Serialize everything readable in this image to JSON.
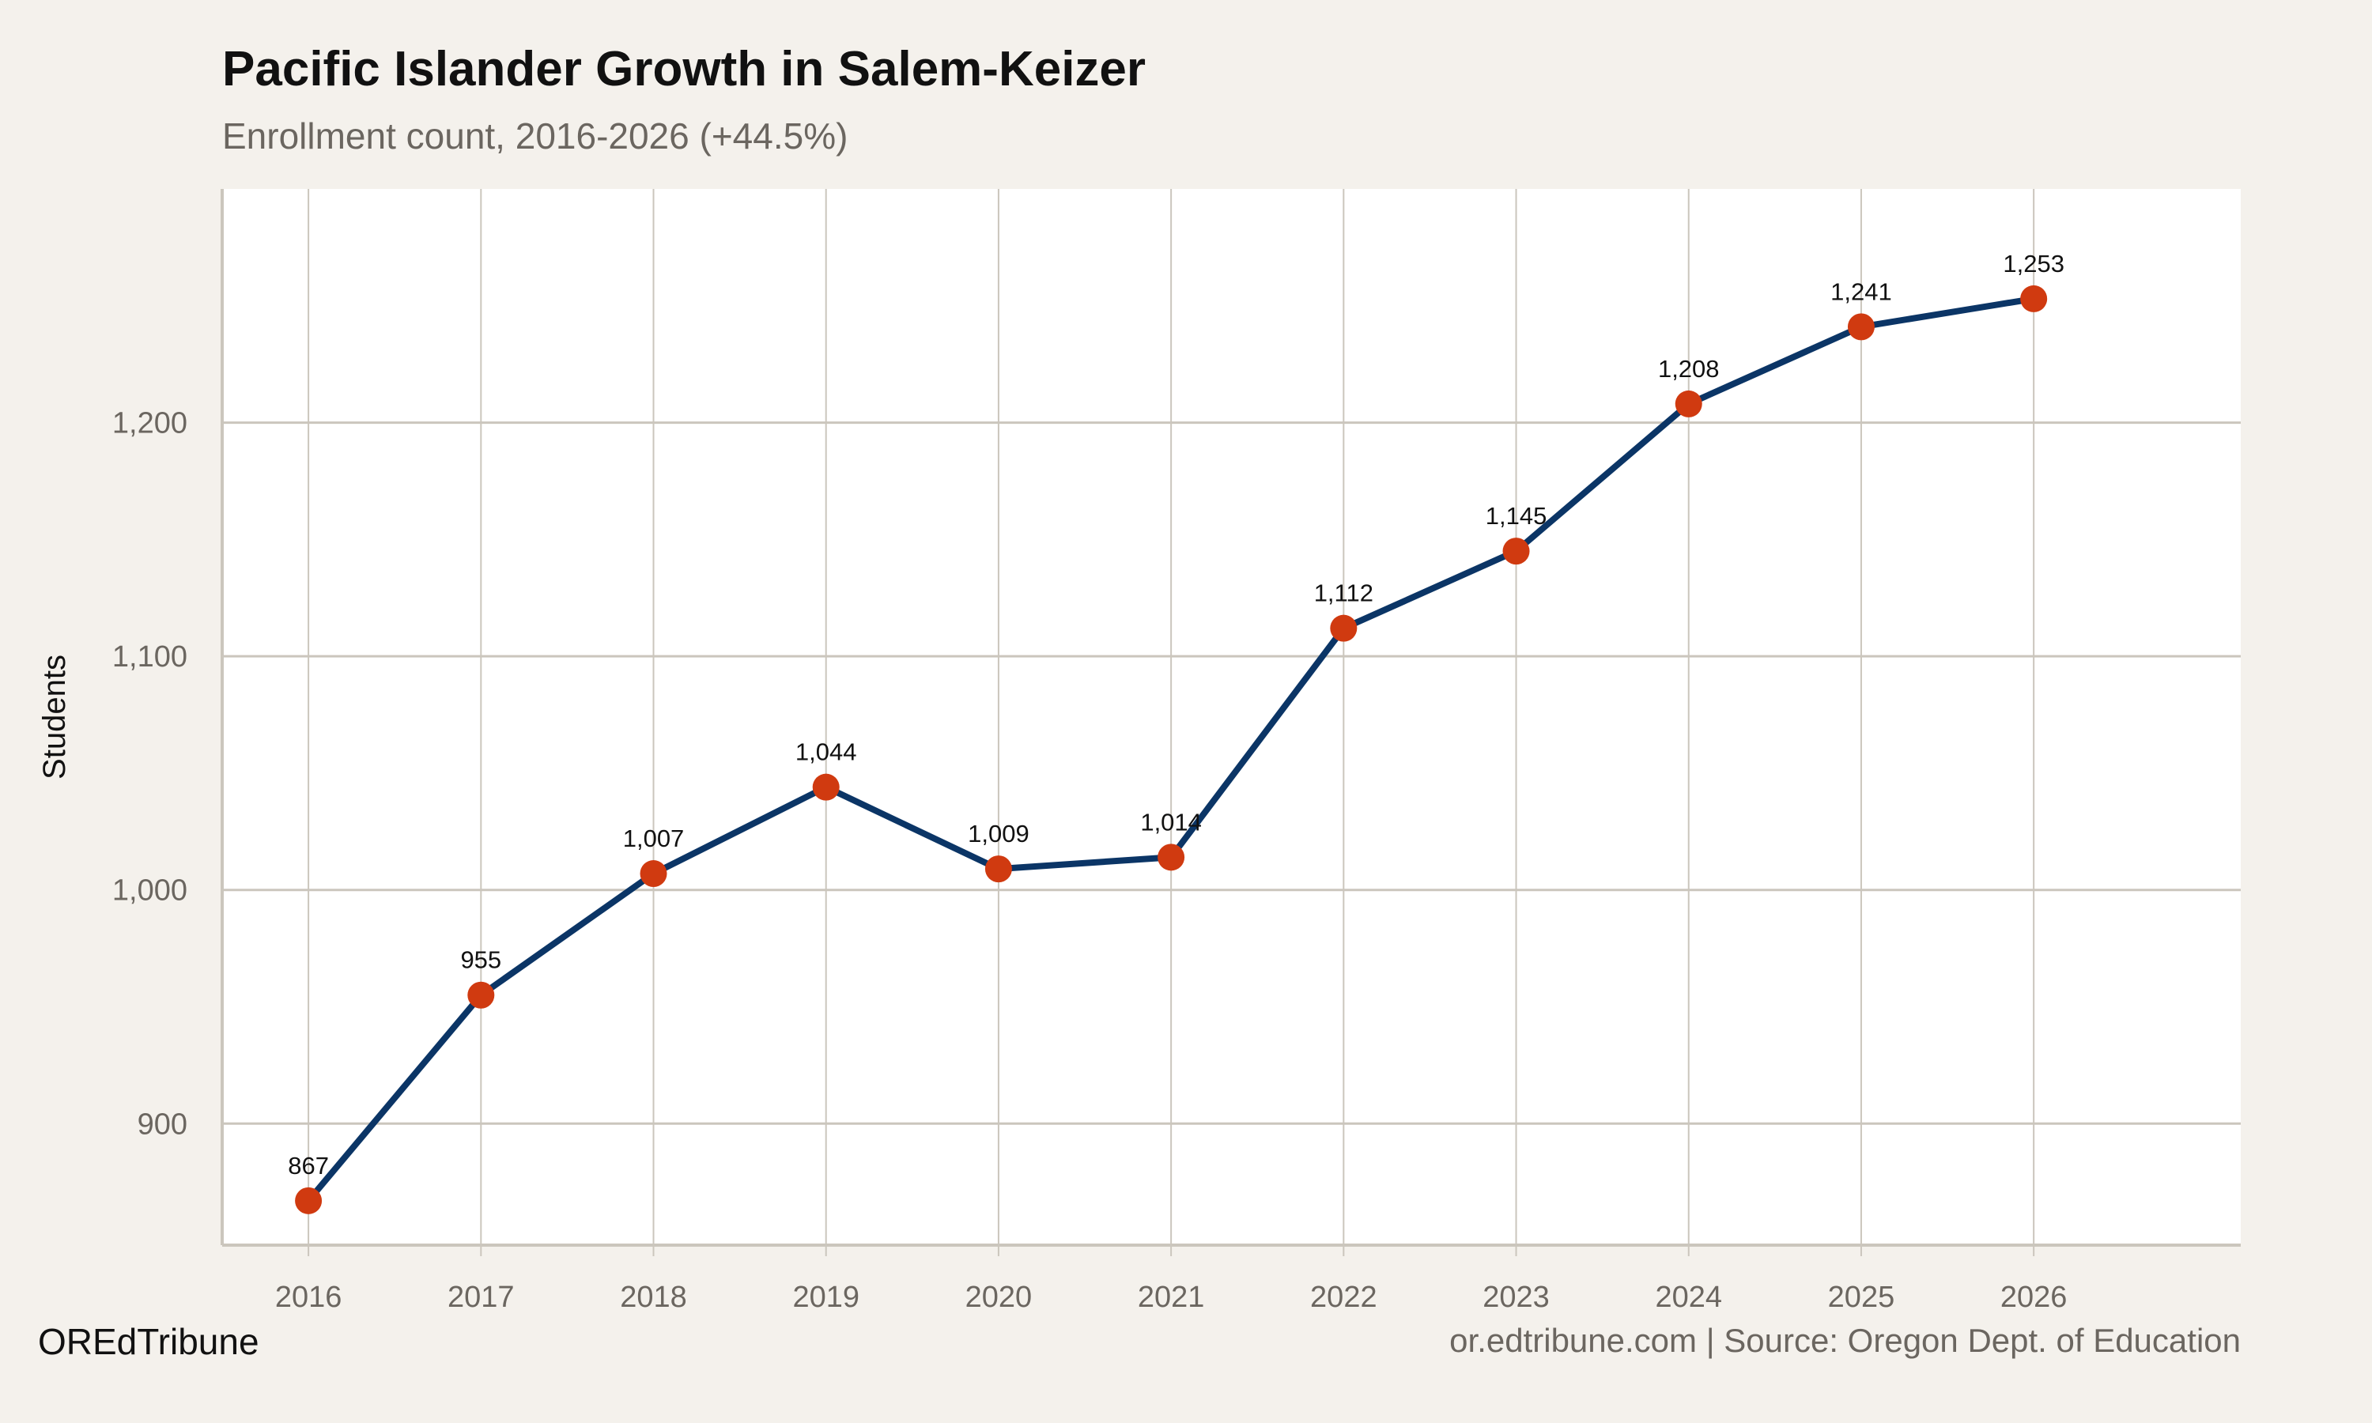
{
  "colors": {
    "background": "#f4f1ec",
    "panel": "#ffffff",
    "grid": "#cbc6bd",
    "line": "#0b3566",
    "point": "#d03a10"
  },
  "footer": {
    "brand": "OREdTribune",
    "source": "or.edtribune.com | Source: Oregon Dept. of Education"
  },
  "chart_data": {
    "type": "line",
    "title": "Pacific Islander Growth in Salem-Keizer",
    "subtitle": "Enrollment count, 2016-2026 (+44.5%)",
    "xlabel": "",
    "ylabel": "Students",
    "x": [
      2016,
      2017,
      2018,
      2019,
      2020,
      2021,
      2022,
      2023,
      2024,
      2025,
      2026
    ],
    "values": [
      867,
      955,
      1007,
      1044,
      1009,
      1014,
      1112,
      1145,
      1208,
      1241,
      1253
    ],
    "data_labels": [
      "867",
      "955",
      "1,007",
      "1,044",
      "1,009",
      "1,014",
      "1,112",
      "1,145",
      "1,208",
      "1,241",
      "1,253"
    ],
    "x_ticks": [
      "2016",
      "2017",
      "2018",
      "2019",
      "2020",
      "2021",
      "2022",
      "2023",
      "2024",
      "2025",
      "2026"
    ],
    "y_ticks": [
      900,
      1000,
      1100,
      1200
    ],
    "y_tick_labels": [
      "900",
      "1,000",
      "1,100",
      "1,200"
    ],
    "xlim": [
      2015.5,
      2027.2
    ],
    "ylim": [
      848,
      1300
    ],
    "grid": true,
    "markers": true
  }
}
